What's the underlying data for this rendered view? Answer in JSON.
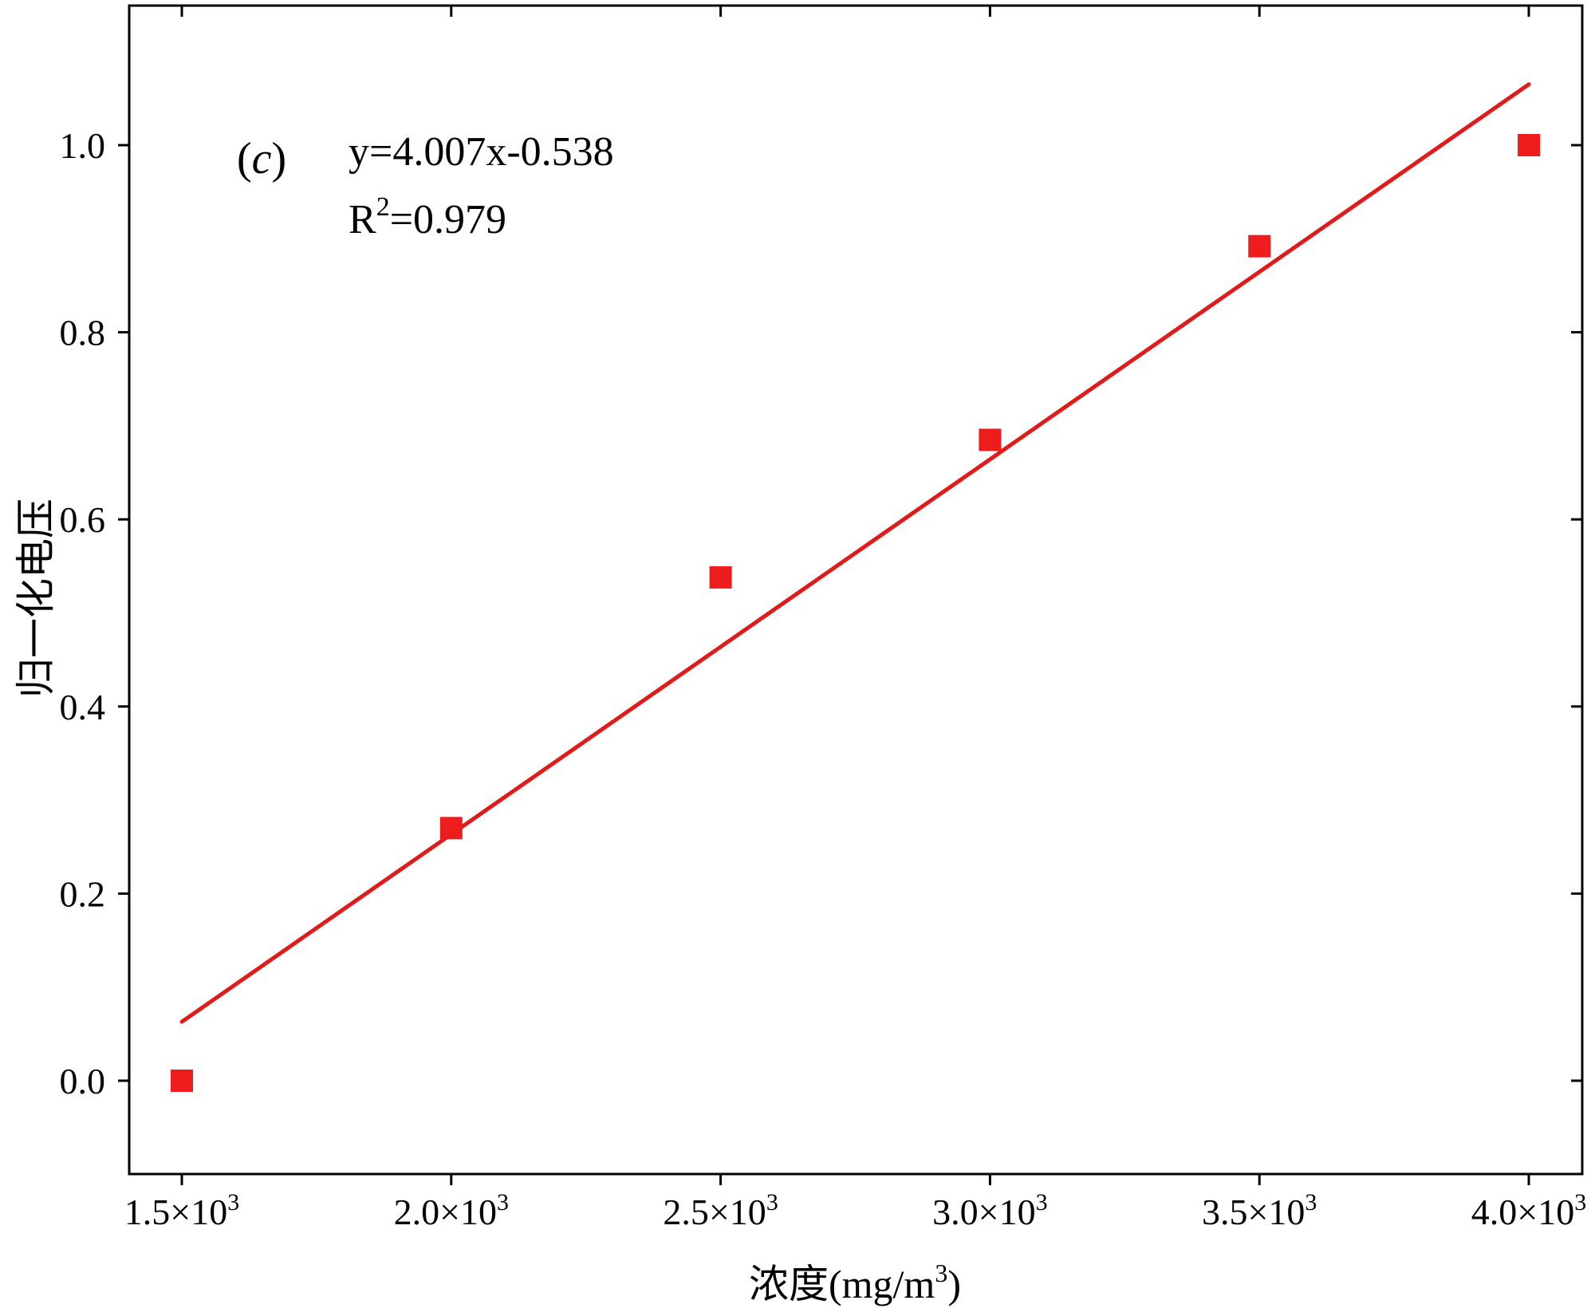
{
  "chart_data": {
    "type": "scatter",
    "panel_label": "(c)",
    "panel_letter": "c",
    "equation": "y=4.007x-0.538",
    "r2_prefix": "R",
    "r2_exponent": "2",
    "r2_value": "=0.979",
    "xlabel_main": "浓度(mg/m",
    "xlabel_exponent": "3",
    "xlabel_close": ")",
    "ylabel": "归一化电压",
    "xlim": [
      1400,
      4200
    ],
    "ylim": [
      -0.1,
      1.1
    ],
    "x_ticks": [
      1500,
      2000,
      2500,
      3000,
      3500,
      4000
    ],
    "x_tick_labels": [
      {
        "mantissa": "1.5×10",
        "exponent": "3"
      },
      {
        "mantissa": "2.0×10",
        "exponent": "3"
      },
      {
        "mantissa": "2.5×10",
        "exponent": "3"
      },
      {
        "mantissa": "3.0×10",
        "exponent": "3"
      },
      {
        "mantissa": "3.5×10",
        "exponent": "3"
      },
      {
        "mantissa": "4.0×10",
        "exponent": "3"
      }
    ],
    "y_ticks": [
      0.0,
      0.2,
      0.4,
      0.6,
      0.8,
      1.0
    ],
    "y_tick_labels": [
      "0.0",
      "0.2",
      "0.4",
      "0.6",
      "0.8",
      "1.0"
    ],
    "series": [
      {
        "x": [
          1500,
          2000,
          2500,
          3000,
          3500,
          4000
        ],
        "y": [
          0.0,
          0.27,
          0.538,
          0.685,
          0.892,
          1.0
        ],
        "marker": "square",
        "color": "#ee1c1c"
      }
    ],
    "fit_line": {
      "x": [
        1500,
        4000
      ],
      "y": [
        0.063,
        1.065
      ],
      "color": "#e31a1a"
    },
    "grid": false,
    "legend": "none"
  }
}
